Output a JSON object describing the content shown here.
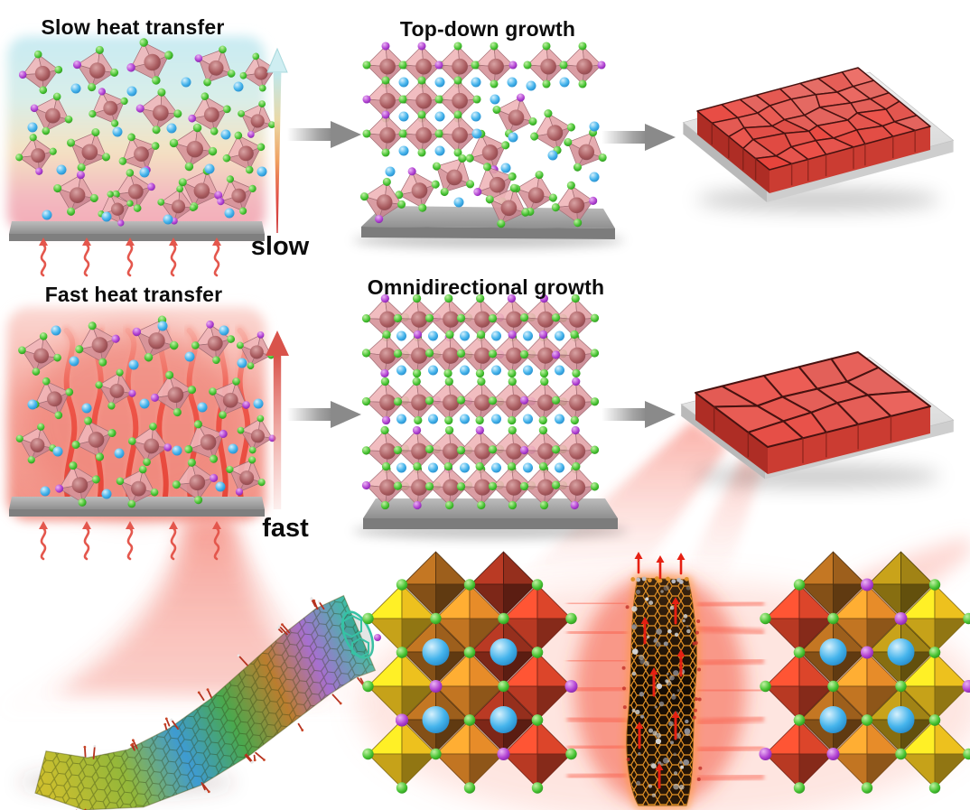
{
  "figure": {
    "labels": {
      "slow_heat_title": "Slow heat transfer",
      "fast_heat_title": "Fast heat transfer",
      "top_down_title": "Top-down growth",
      "omni_title": "Omnidirectional growth",
      "slow_arrow_label": "slow",
      "fast_arrow_label": "fast"
    },
    "colors": {
      "accent_red": "#e8514a",
      "octahedron_pink": "#e2a3a7",
      "vertex_green": "#46c332",
      "vertex_purple": "#b03fd1",
      "ion_blue": "#3fb3ec",
      "substrate_gray": "#9a9a9a",
      "flow_arrow_gray": "#8a8a8a",
      "heat_glow": "#f2968b",
      "gold_octahedron": "#f2c51f",
      "orange_octahedron": "#ec8f2a",
      "red_octahedron": "#e0462b",
      "nanotube_teal": "#35c2a5",
      "cnt_mesh_orange": "#f09a28"
    }
  }
}
